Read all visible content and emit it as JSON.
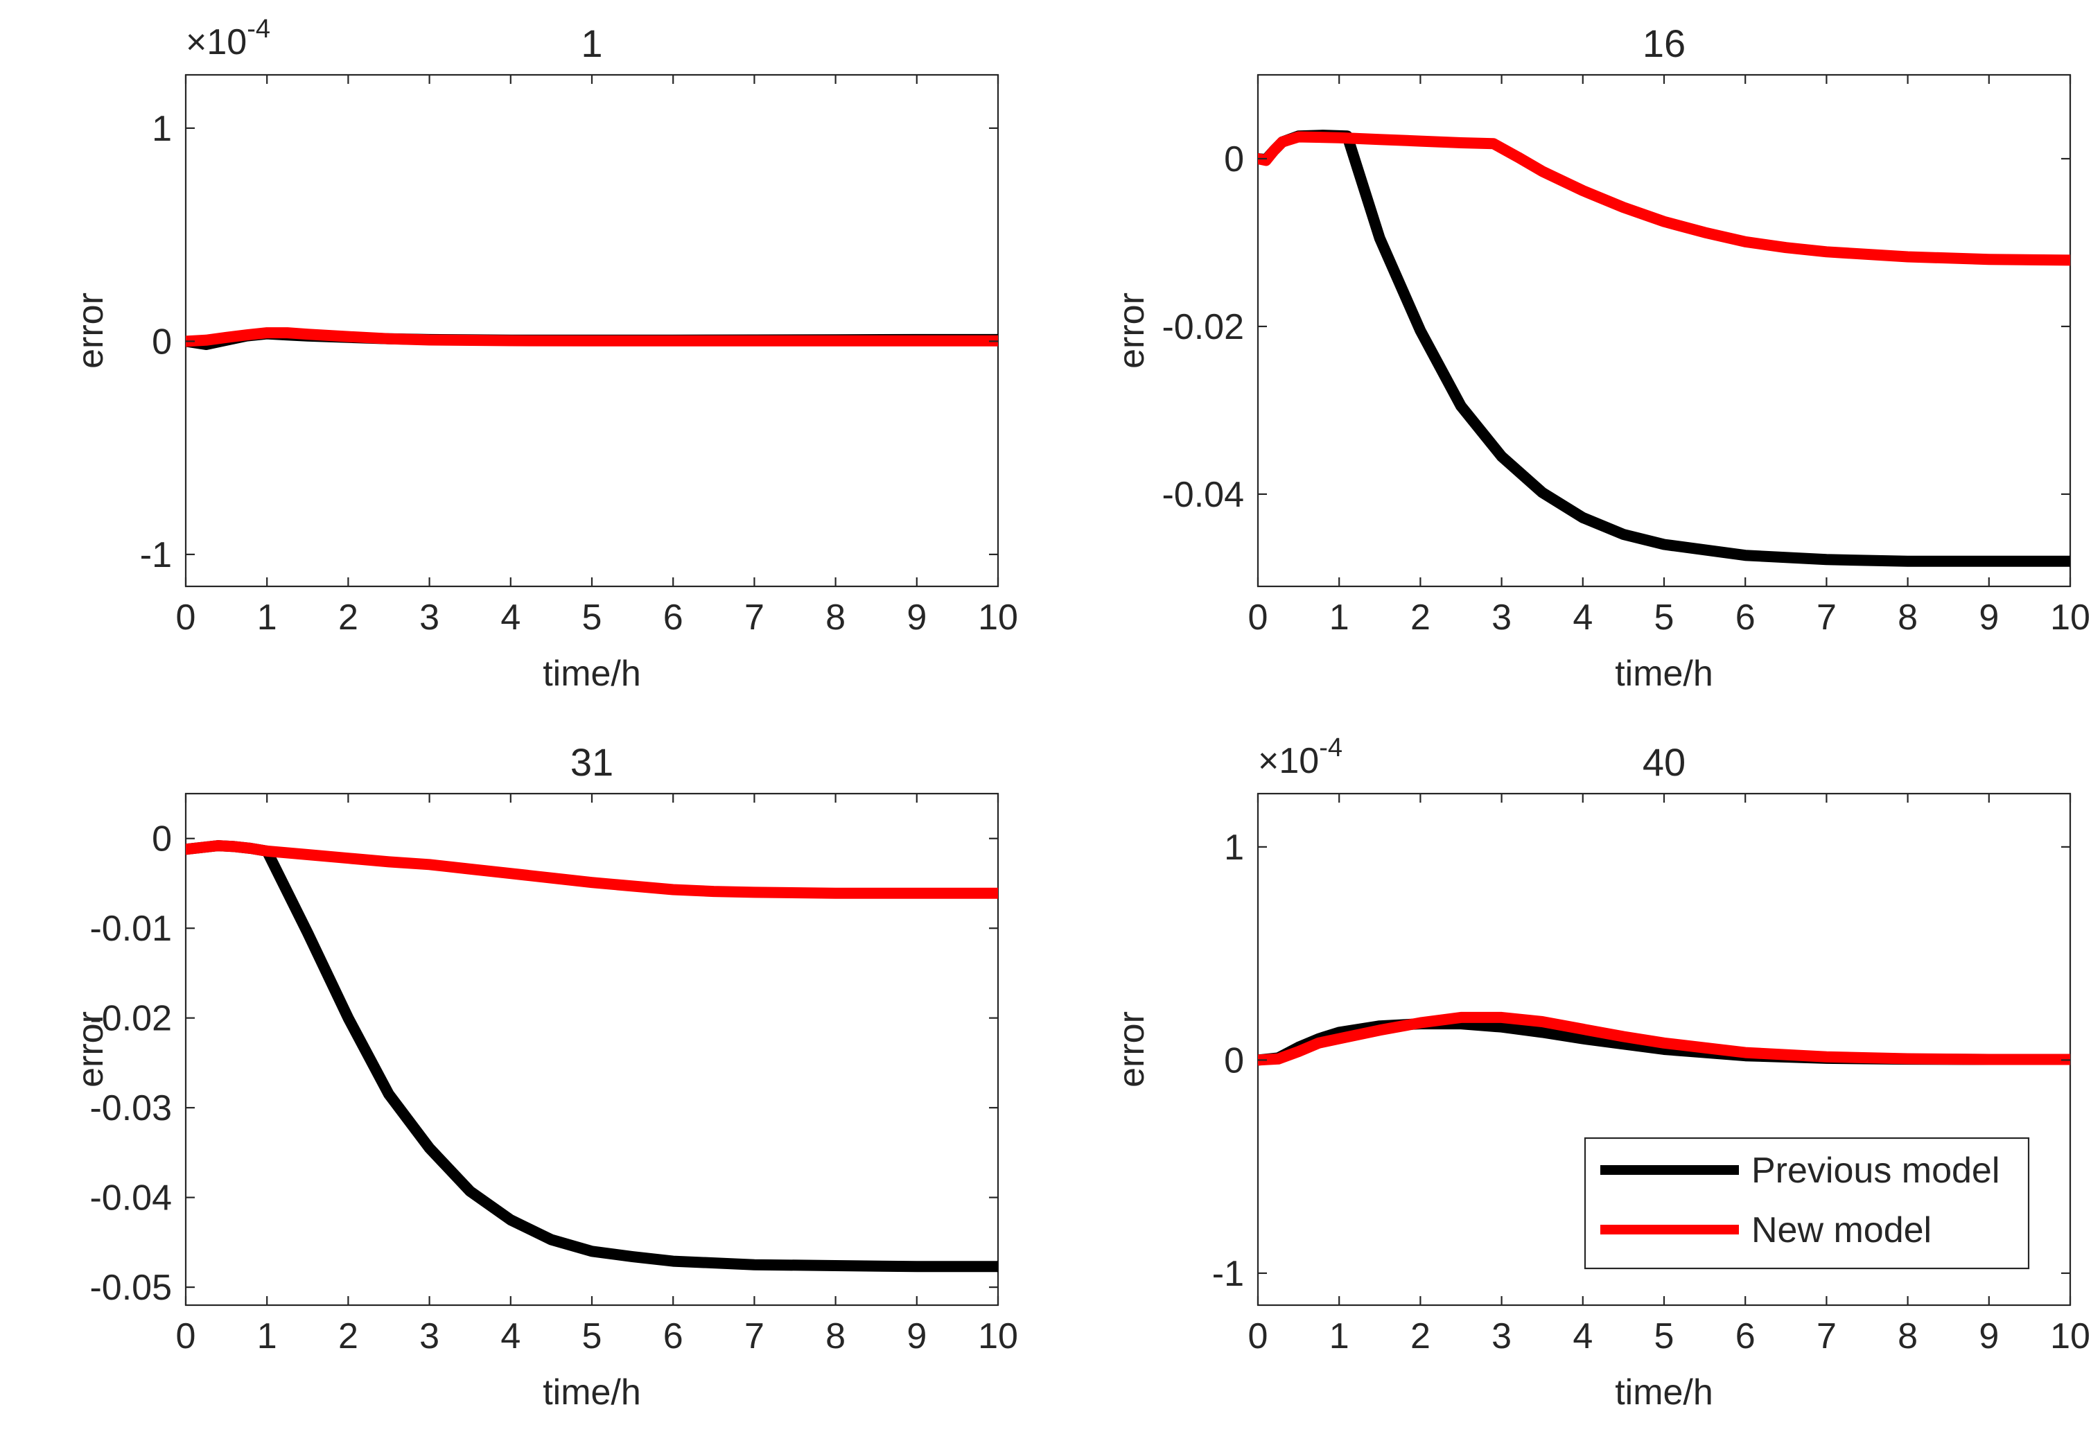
{
  "colors": {
    "previous": "#000000",
    "new": "#ff0000",
    "axis": "#262626"
  },
  "chart_data": [
    {
      "type": "line",
      "title": "1",
      "xlabel": "time/h",
      "ylabel": "error",
      "xlim": [
        0,
        10
      ],
      "ylim": [
        -1.15,
        1.25
      ],
      "x_ticks": [
        0,
        1,
        2,
        3,
        4,
        5,
        6,
        7,
        8,
        9,
        10
      ],
      "x_tick_labels": [
        "0",
        "1",
        "2",
        "3",
        "4",
        "5",
        "6",
        "7",
        "8",
        "9",
        "10"
      ],
      "y_ticks": [
        -1,
        0,
        1
      ],
      "y_tick_labels": [
        "-1",
        "0",
        "1"
      ],
      "exponent_label": "×10",
      "exponent_value": "-4",
      "grid": false,
      "series": [
        {
          "name": "Previous model",
          "color": "#000000",
          "x": [
            0,
            0.25,
            0.5,
            0.75,
            1,
            1.25,
            1.5,
            2,
            2.5,
            3,
            4,
            5,
            6,
            7,
            8,
            9,
            10
          ],
          "y": [
            0,
            -0.015,
            0.005,
            0.025,
            0.035,
            0.03,
            0.025,
            0.018,
            0.012,
            0.008,
            0.005,
            0.005,
            0.005,
            0.006,
            0.007,
            0.008,
            0.008
          ]
        },
        {
          "name": "New model",
          "color": "#ff0000",
          "x": [
            0,
            0.25,
            0.5,
            0.75,
            1,
            1.25,
            1.5,
            2,
            2.5,
            3,
            4,
            5,
            6,
            7,
            8,
            9,
            10
          ],
          "y": [
            0,
            0.005,
            0.018,
            0.03,
            0.04,
            0.04,
            0.033,
            0.022,
            0.012,
            0.006,
            0.003,
            0.002,
            0.002,
            0.002,
            0.002,
            0.002,
            0.002
          ]
        }
      ]
    },
    {
      "type": "line",
      "title": "16",
      "xlabel": "time/h",
      "ylabel": "error",
      "xlim": [
        0,
        10
      ],
      "ylim": [
        -0.051,
        0.01
      ],
      "x_ticks": [
        0,
        1,
        2,
        3,
        4,
        5,
        6,
        7,
        8,
        9,
        10
      ],
      "x_tick_labels": [
        "0",
        "1",
        "2",
        "3",
        "4",
        "5",
        "6",
        "7",
        "8",
        "9",
        "10"
      ],
      "y_ticks": [
        -0.04,
        -0.02,
        0
      ],
      "y_tick_labels": [
        "-0.04",
        "-0.02",
        "0"
      ],
      "grid": false,
      "series": [
        {
          "name": "Previous model",
          "color": "#000000",
          "x": [
            0,
            0.1,
            0.2,
            0.3,
            0.5,
            0.8,
            1.1,
            1.5,
            2,
            2.5,
            3,
            3.5,
            4,
            4.5,
            5,
            6,
            7,
            8,
            9,
            10
          ],
          "y": [
            0,
            -0.0001,
            0.001,
            0.002,
            0.0027,
            0.0028,
            0.0027,
            -0.0095,
            -0.0205,
            -0.0295,
            -0.0355,
            -0.0398,
            -0.0428,
            -0.0448,
            -0.046,
            -0.0473,
            -0.0478,
            -0.048,
            -0.048,
            -0.048
          ]
        },
        {
          "name": "New model",
          "color": "#ff0000",
          "x": [
            0,
            0.1,
            0.2,
            0.3,
            0.5,
            1,
            1.5,
            2,
            2.5,
            2.9,
            3.2,
            3.5,
            4,
            4.5,
            5,
            5.5,
            6,
            6.5,
            7,
            8,
            9,
            10
          ],
          "y": [
            0,
            -0.0002,
            0.001,
            0.002,
            0.0026,
            0.0025,
            0.0023,
            0.0021,
            0.0019,
            0.0018,
            0.0002,
            -0.0015,
            -0.0038,
            -0.0058,
            -0.0075,
            -0.0088,
            -0.0099,
            -0.0106,
            -0.0111,
            -0.0117,
            -0.012,
            -0.0121
          ]
        }
      ]
    },
    {
      "type": "line",
      "title": "31",
      "xlabel": "time/h",
      "ylabel": "error",
      "xlim": [
        0,
        10
      ],
      "ylim": [
        -0.052,
        0.005
      ],
      "x_ticks": [
        0,
        1,
        2,
        3,
        4,
        5,
        6,
        7,
        8,
        9,
        10
      ],
      "x_tick_labels": [
        "0",
        "1",
        "2",
        "3",
        "4",
        "5",
        "6",
        "7",
        "8",
        "9",
        "10"
      ],
      "y_ticks": [
        -0.05,
        -0.04,
        -0.03,
        -0.02,
        -0.01,
        0
      ],
      "y_tick_labels": [
        "-0.05",
        "-0.04",
        "-0.03",
        "-0.02",
        "-0.01",
        "0"
      ],
      "grid": false,
      "series": [
        {
          "name": "Previous model",
          "color": "#000000",
          "x": [
            0,
            0.2,
            0.4,
            0.6,
            0.8,
            1,
            1.5,
            2,
            2.5,
            3,
            3.5,
            4,
            4.5,
            5,
            5.5,
            6,
            7,
            8,
            9,
            10
          ],
          "y": [
            -0.0012,
            -0.001,
            -0.0008,
            -0.0009,
            -0.0011,
            -0.0014,
            -0.0105,
            -0.02,
            -0.0285,
            -0.0345,
            -0.0393,
            -0.0425,
            -0.0447,
            -0.046,
            -0.0466,
            -0.0471,
            -0.0475,
            -0.0476,
            -0.0477,
            -0.0477
          ]
        },
        {
          "name": "New model",
          "color": "#ff0000",
          "x": [
            0,
            0.2,
            0.4,
            0.6,
            0.8,
            1,
            1.5,
            2,
            2.5,
            3,
            3.5,
            4,
            4.5,
            5,
            5.5,
            6,
            6.5,
            7,
            8,
            9,
            10
          ],
          "y": [
            -0.0012,
            -0.001,
            -0.0008,
            -0.0009,
            -0.0011,
            -0.0014,
            -0.0018,
            -0.0022,
            -0.0026,
            -0.0029,
            -0.0034,
            -0.0039,
            -0.0044,
            -0.0049,
            -0.0053,
            -0.0057,
            -0.0059,
            -0.006,
            -0.0061,
            -0.0061,
            -0.0061
          ]
        }
      ]
    },
    {
      "type": "line",
      "title": "40",
      "xlabel": "time/h",
      "ylabel": "error",
      "xlim": [
        0,
        10
      ],
      "ylim": [
        -1.15,
        1.25
      ],
      "x_ticks": [
        0,
        1,
        2,
        3,
        4,
        5,
        6,
        7,
        8,
        9,
        10
      ],
      "x_tick_labels": [
        "0",
        "1",
        "2",
        "3",
        "4",
        "5",
        "6",
        "7",
        "8",
        "9",
        "10"
      ],
      "y_ticks": [
        -1,
        0,
        1
      ],
      "y_tick_labels": [
        "-1",
        "0",
        "1"
      ],
      "exponent_label": "×10",
      "exponent_value": "-4",
      "grid": false,
      "legend": {
        "position": "bottom-right",
        "entries": [
          "Previous model",
          "New model"
        ]
      },
      "series": [
        {
          "name": "Previous model",
          "color": "#000000",
          "x": [
            0,
            0.25,
            0.5,
            0.75,
            1,
            1.5,
            2,
            2.5,
            3,
            3.5,
            4,
            4.5,
            5,
            6,
            7,
            8,
            9,
            10
          ],
          "y": [
            0,
            0.01,
            0.06,
            0.1,
            0.13,
            0.16,
            0.17,
            0.17,
            0.155,
            0.13,
            0.1,
            0.075,
            0.05,
            0.02,
            0.008,
            0.004,
            0.003,
            0.003
          ]
        },
        {
          "name": "New model",
          "color": "#ff0000",
          "x": [
            0,
            0.25,
            0.5,
            0.75,
            1,
            1.5,
            2,
            2.5,
            3,
            3.5,
            4,
            4.5,
            5,
            6,
            7,
            8,
            9,
            10
          ],
          "y": [
            0,
            0.005,
            0.04,
            0.08,
            0.1,
            0.14,
            0.175,
            0.2,
            0.2,
            0.18,
            0.145,
            0.11,
            0.08,
            0.035,
            0.015,
            0.006,
            0.003,
            0.003
          ]
        }
      ]
    }
  ]
}
